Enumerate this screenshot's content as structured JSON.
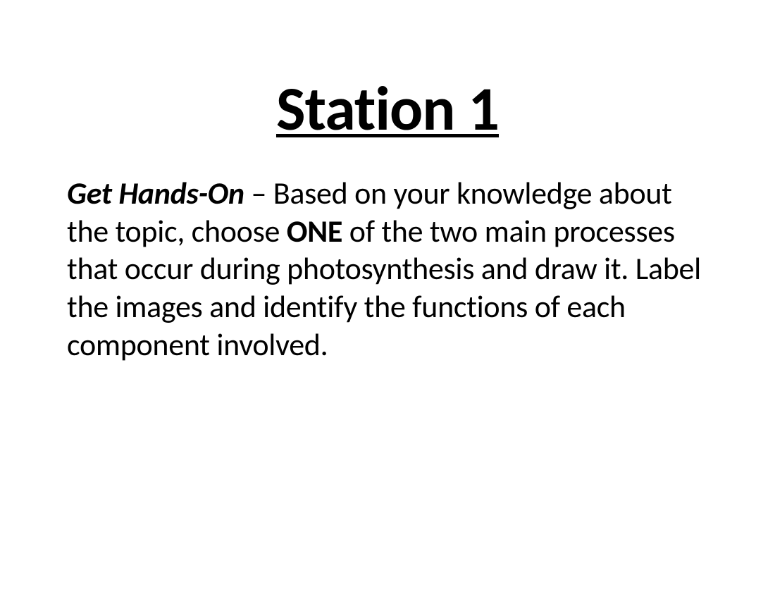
{
  "slide": {
    "title": "Station 1",
    "body": {
      "lead_label": "Get Hands-On",
      "separator": " – ",
      "text_before_bold": "Based on your knowledge about the topic, choose ",
      "bold_word": "ONE",
      "text_after_bold": " of the two main processes that occur during photosynthesis and draw it. Label the images and identify the functions of each component involved."
    },
    "style": {
      "background_color": "#ffffff",
      "text_color": "#000000",
      "title_fontsize": 88,
      "title_fontweight": 700,
      "body_fontsize": 44,
      "font_family": "Calibri"
    }
  }
}
